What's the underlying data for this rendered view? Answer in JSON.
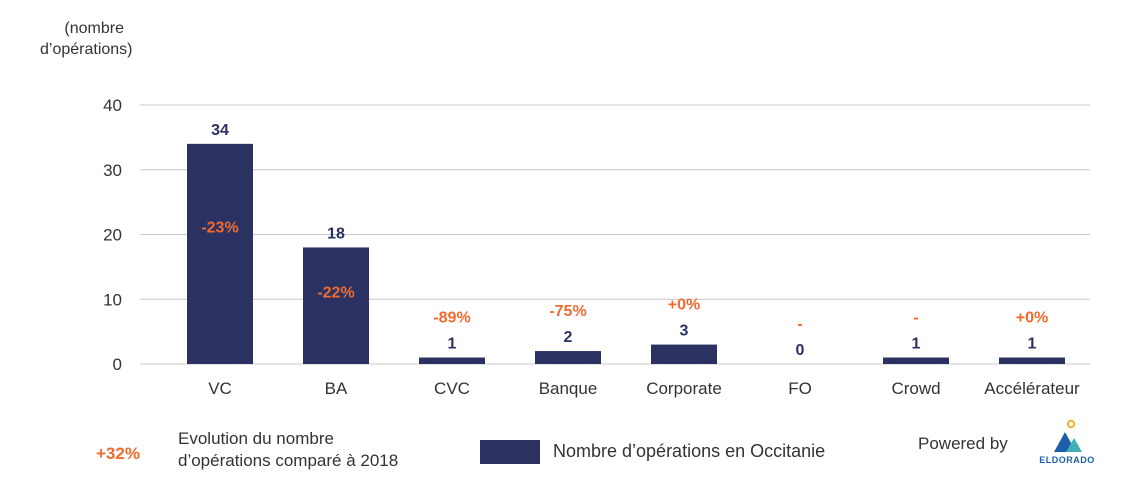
{
  "y_axis_unit": [
    "(nombre",
    "d’opérations)"
  ],
  "chart_data": {
    "type": "bar",
    "categories": [
      "VC",
      "BA",
      "CVC",
      "Banque",
      "Corporate",
      "FO",
      "Crowd",
      "Accélérateur"
    ],
    "series": [
      {
        "name": "Nombre d’opérations en Occitanie",
        "values": [
          34,
          18,
          1,
          2,
          3,
          0,
          1,
          1
        ],
        "value_labels": [
          "34",
          "18",
          "1",
          "2",
          "3",
          "0",
          "1",
          "1"
        ]
      }
    ],
    "change_labels": [
      "-23%",
      "-22%",
      "-89%",
      "-75%",
      "+0%",
      "-",
      "-",
      "+0%"
    ],
    "y_ticks": [
      0,
      10,
      20,
      30,
      40
    ],
    "ylim": [
      0,
      40
    ],
    "grid": true
  },
  "legend": {
    "change_value": "+32%",
    "change_text": [
      "Evolution du nombre",
      "d’opérations comparé à 2018"
    ],
    "series_label": "Nombre d’opérations en Occitanie"
  },
  "branding": {
    "powered_by": "Powered by",
    "logo_text": "ELDORADO"
  },
  "colors": {
    "bar": "#2b3262",
    "value_label": "#2b3262",
    "change_label": "#f26a2e",
    "grid": "#c8c8c8",
    "axis_text": "#333333",
    "logo_blue": "#1c5fa8",
    "logo_teal": "#3fb0b5",
    "logo_yellow": "#f0b429"
  }
}
